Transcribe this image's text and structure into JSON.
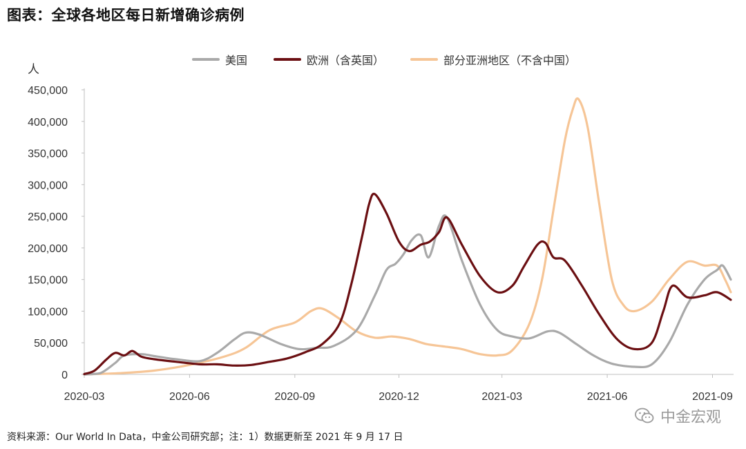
{
  "header": {
    "title": "图表：全球各地区每日新增确诊病例"
  },
  "unit_label": "人",
  "source_text": "资料来源：Our World In Data，中金公司研究部；注：1）数据更新至 2021 年 9 月 17 日",
  "watermark": {
    "text": "中金宏观",
    "icon": "wechat-icon"
  },
  "colors": {
    "usa": "#a9a9a9",
    "europe": "#6b0f12",
    "asia": "#f6c596"
  },
  "chart_data": {
    "type": "line",
    "title": "",
    "xlabel": "",
    "ylabel": "人",
    "ylim": [
      0,
      450000
    ],
    "xlim": [
      "2020-03-01",
      "2021-09-17"
    ],
    "grid": false,
    "legend_position": "top",
    "y_ticks": [
      0,
      50000,
      100000,
      150000,
      200000,
      250000,
      300000,
      350000,
      400000,
      450000
    ],
    "y_tick_labels": [
      "0",
      "50,000",
      "100,000",
      "150,000",
      "200,000",
      "250,000",
      "300,000",
      "350,000",
      "400,000",
      "450,000"
    ],
    "x_ticks": [
      "2020-03-01",
      "2020-06-01",
      "2020-09-01",
      "2020-12-01",
      "2021-03-01",
      "2021-06-01",
      "2021-09-01"
    ],
    "x_tick_labels": [
      "2020-03",
      "2020-06",
      "2020-09",
      "2020-12",
      "2021-03",
      "2021-06",
      "2021-09"
    ],
    "series": [
      {
        "name": "美国",
        "color": "#a9a9a9",
        "points": [
          [
            "2020-03-01",
            0
          ],
          [
            "2020-03-15",
            2000
          ],
          [
            "2020-03-28",
            18000
          ],
          [
            "2020-04-05",
            30000
          ],
          [
            "2020-04-20",
            32000
          ],
          [
            "2020-05-01",
            29000
          ],
          [
            "2020-05-20",
            24000
          ],
          [
            "2020-06-10",
            21000
          ],
          [
            "2020-06-25",
            34000
          ],
          [
            "2020-07-10",
            55000
          ],
          [
            "2020-07-20",
            66000
          ],
          [
            "2020-08-01",
            63000
          ],
          [
            "2020-08-20",
            48000
          ],
          [
            "2020-09-05",
            40000
          ],
          [
            "2020-09-20",
            42000
          ],
          [
            "2020-10-05",
            45000
          ],
          [
            "2020-10-25",
            70000
          ],
          [
            "2020-11-10",
            125000
          ],
          [
            "2020-11-20",
            165000
          ],
          [
            "2020-11-28",
            175000
          ],
          [
            "2020-12-05",
            190000
          ],
          [
            "2020-12-12",
            212000
          ],
          [
            "2020-12-20",
            220000
          ],
          [
            "2020-12-27",
            185000
          ],
          [
            "2021-01-05",
            235000
          ],
          [
            "2021-01-12",
            248000
          ],
          [
            "2021-01-25",
            180000
          ],
          [
            "2021-02-10",
            110000
          ],
          [
            "2021-02-25",
            70000
          ],
          [
            "2021-03-10",
            60000
          ],
          [
            "2021-03-25",
            57000
          ],
          [
            "2021-04-10",
            68000
          ],
          [
            "2021-04-20",
            66000
          ],
          [
            "2021-05-05",
            48000
          ],
          [
            "2021-05-20",
            30000
          ],
          [
            "2021-06-05",
            17000
          ],
          [
            "2021-06-25",
            12000
          ],
          [
            "2021-07-10",
            16000
          ],
          [
            "2021-07-25",
            50000
          ],
          [
            "2021-08-10",
            110000
          ],
          [
            "2021-08-25",
            150000
          ],
          [
            "2021-09-05",
            165000
          ],
          [
            "2021-09-10",
            172000
          ],
          [
            "2021-09-17",
            150000
          ]
        ]
      },
      {
        "name": "欧洲（含英国）",
        "color": "#6b0f12",
        "points": [
          [
            "2020-03-01",
            500
          ],
          [
            "2020-03-10",
            6000
          ],
          [
            "2020-03-20",
            23000
          ],
          [
            "2020-03-28",
            34000
          ],
          [
            "2020-04-05",
            30000
          ],
          [
            "2020-04-12",
            37000
          ],
          [
            "2020-04-20",
            28000
          ],
          [
            "2020-05-01",
            24000
          ],
          [
            "2020-05-20",
            20000
          ],
          [
            "2020-06-10",
            16000
          ],
          [
            "2020-06-25",
            16000
          ],
          [
            "2020-07-10",
            14000
          ],
          [
            "2020-07-25",
            15000
          ],
          [
            "2020-08-10",
            20000
          ],
          [
            "2020-08-25",
            25000
          ],
          [
            "2020-09-10",
            35000
          ],
          [
            "2020-09-25",
            48000
          ],
          [
            "2020-10-10",
            80000
          ],
          [
            "2020-10-20",
            140000
          ],
          [
            "2020-10-30",
            220000
          ],
          [
            "2020-11-05",
            270000
          ],
          [
            "2020-11-10",
            285000
          ],
          [
            "2020-11-20",
            255000
          ],
          [
            "2020-12-01",
            210000
          ],
          [
            "2020-12-10",
            195000
          ],
          [
            "2020-12-20",
            205000
          ],
          [
            "2020-12-28",
            210000
          ],
          [
            "2021-01-05",
            225000
          ],
          [
            "2021-01-12",
            248000
          ],
          [
            "2021-01-25",
            205000
          ],
          [
            "2021-02-10",
            155000
          ],
          [
            "2021-02-25",
            130000
          ],
          [
            "2021-03-10",
            140000
          ],
          [
            "2021-03-20",
            170000
          ],
          [
            "2021-04-01",
            205000
          ],
          [
            "2021-04-08",
            208000
          ],
          [
            "2021-04-15",
            185000
          ],
          [
            "2021-04-25",
            180000
          ],
          [
            "2021-05-10",
            140000
          ],
          [
            "2021-05-25",
            95000
          ],
          [
            "2021-06-10",
            55000
          ],
          [
            "2021-06-25",
            40000
          ],
          [
            "2021-07-10",
            50000
          ],
          [
            "2021-07-20",
            100000
          ],
          [
            "2021-07-28",
            140000
          ],
          [
            "2021-08-10",
            122000
          ],
          [
            "2021-08-25",
            125000
          ],
          [
            "2021-09-05",
            130000
          ],
          [
            "2021-09-17",
            118000
          ]
        ]
      },
      {
        "name": "部分亚洲地区（不含中国）",
        "color": "#f6c596",
        "points": [
          [
            "2020-03-01",
            0
          ],
          [
            "2020-04-01",
            2000
          ],
          [
            "2020-05-01",
            6000
          ],
          [
            "2020-06-01",
            15000
          ],
          [
            "2020-07-01",
            28000
          ],
          [
            "2020-07-20",
            42000
          ],
          [
            "2020-08-10",
            70000
          ],
          [
            "2020-09-01",
            82000
          ],
          [
            "2020-09-15",
            100000
          ],
          [
            "2020-09-25",
            104000
          ],
          [
            "2020-10-10",
            88000
          ],
          [
            "2020-10-25",
            68000
          ],
          [
            "2020-11-10",
            58000
          ],
          [
            "2020-11-25",
            60000
          ],
          [
            "2020-12-10",
            56000
          ],
          [
            "2020-12-25",
            48000
          ],
          [
            "2021-01-10",
            44000
          ],
          [
            "2021-01-25",
            40000
          ],
          [
            "2021-02-10",
            32000
          ],
          [
            "2021-02-25",
            30000
          ],
          [
            "2021-03-10",
            38000
          ],
          [
            "2021-03-25",
            80000
          ],
          [
            "2021-04-05",
            150000
          ],
          [
            "2021-04-15",
            260000
          ],
          [
            "2021-04-25",
            370000
          ],
          [
            "2021-05-02",
            420000
          ],
          [
            "2021-05-07",
            435000
          ],
          [
            "2021-05-15",
            390000
          ],
          [
            "2021-05-25",
            270000
          ],
          [
            "2021-06-05",
            150000
          ],
          [
            "2021-06-15",
            110000
          ],
          [
            "2021-06-25",
            100000
          ],
          [
            "2021-07-10",
            115000
          ],
          [
            "2021-07-25",
            150000
          ],
          [
            "2021-08-10",
            178000
          ],
          [
            "2021-08-25",
            172000
          ],
          [
            "2021-09-05",
            172000
          ],
          [
            "2021-09-12",
            150000
          ],
          [
            "2021-09-17",
            130000
          ]
        ]
      }
    ]
  }
}
